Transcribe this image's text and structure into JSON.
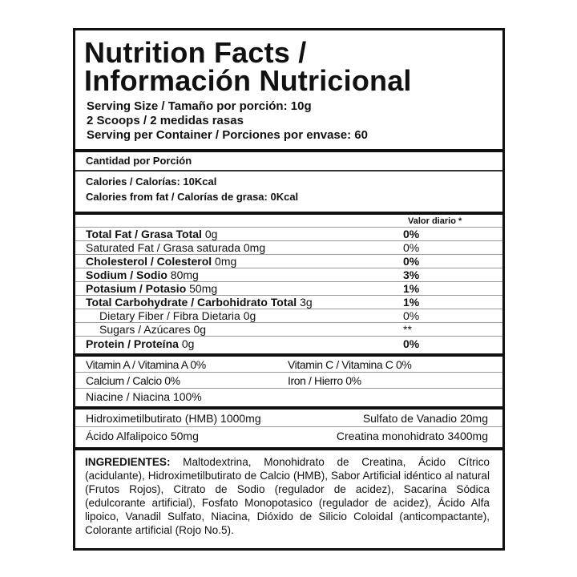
{
  "title": [
    "Nutrition Facts /",
    "Información Nutricional"
  ],
  "serving": [
    "Serving Size / Tamaño por porción: 10g",
    "2 Scoops / 2 medidas rasas",
    "Serving per Container / Porciones por envase: 60"
  ],
  "amount_header": "Cantidad por Porción",
  "calories": "Calories / Calorías: 10Kcal",
  "calories_fat": "Calories from fat / Calorías de grasa: 0Kcal",
  "dv_header": "Valor diario *",
  "nutrients": [
    {
      "name": "Total Fat / Grasa Total",
      "amount": "0g",
      "dv": "0%"
    },
    {
      "name": "Saturated Fat / Grasa saturada",
      "amount": " 0mg",
      "dv": "0%"
    },
    {
      "name": "Cholesterol / Colesterol",
      "amount": "0mg",
      "dv": "0%"
    },
    {
      "name": "Sodium / Sodio",
      "amount": "80mg",
      "dv": "3%"
    },
    {
      "name": "Potasium / Potasio",
      "amount": "50mg",
      "dv": "1%"
    },
    {
      "name": "Total Carbohydrate / Carbohidrato Total",
      "amount": "3g",
      "dv": "1%"
    },
    {
      "name": "Dietary Fiber / Fibra Dietaria",
      "amount": "0g",
      "dv": "0%"
    },
    {
      "name": "Sugars / Azúcares",
      "amount": "0g",
      "dv": "**"
    },
    {
      "name": "Protein / Proteína",
      "amount": "0g",
      "dv": "0%"
    }
  ],
  "vitamins": [
    "Vitamin A / Vitamina A 0%",
    "Vitamin C / Vitamina C 0%",
    "Calcium / Calcio 0%",
    "Iron / Hierro 0%",
    "Niacine / Niacina  100%"
  ],
  "actives": [
    "Hidroximetilbutirato (HMB) 1000mg",
    "Sulfato de Vanadio 20mg",
    "Ácido Alfalipoico 50mg",
    "Creatina monohidrato  3400mg"
  ],
  "ingredients_label": "INGREDIENTES:",
  "ingredients": " Maltodextrina, Monohidrato de Creatina, Ácido Cítrico (acidulante), Hidroximetilbutirato de Calcio (HMB), Sabor Artificial idéntico al natural (Frutos Rojos), Citrato de Sodio (regulador de acidez), Sacarina Sódica (edulcorante artificial), Fosfato Monopotasico (regulador de acidez), Ácido Alfa lipoico, Vanadil Sulfato, Niacina, Dióxido de Silicio Coloidal (anticompactante), Colorante artificial (Rojo No.5)."
}
